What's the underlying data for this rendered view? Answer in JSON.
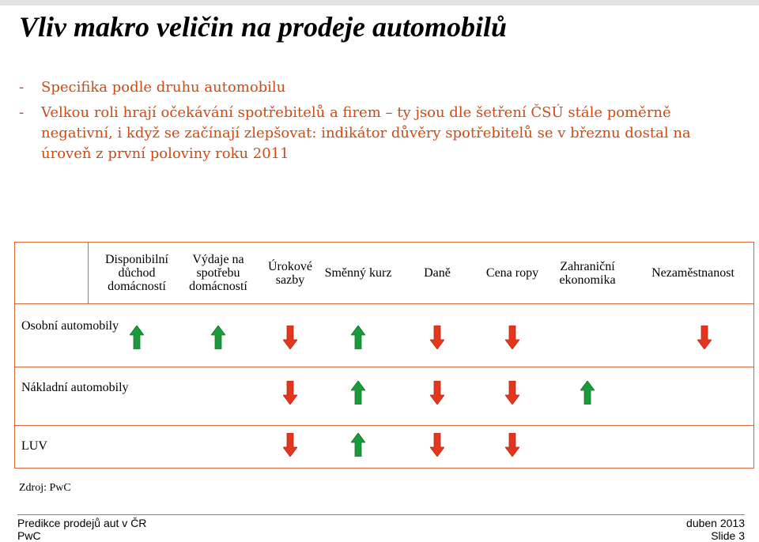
{
  "title": "Vliv makro veličin na prodeje automobilů",
  "bullets": [
    "Specifika podle druhu automobilu",
    "Velkou roli hrají očekávání spotřebitelů a firem – ty jsou dle šetření ČSÚ stále poměrně negativní, i když se začínají zlepšovat: indikátor důvěry spotřebitelů se v březnu dostal na úroveň z první poloviny roku 2011"
  ],
  "bullet_marker": "-",
  "table": {
    "columns": [
      "Disponibilní důchod domácností",
      "Výdaje na spotřebu domácností",
      "Úrokové sazby",
      "Směnný kurz",
      "Daně",
      "Cena ropy",
      "Zahraniční ekonomika",
      "Nezaměstnanost"
    ],
    "rows": [
      {
        "label": "Osobní automobily",
        "effects": [
          "up",
          "up",
          "down",
          "up",
          "down",
          "down",
          "",
          "down"
        ]
      },
      {
        "label": "Nákladní automobily",
        "effects": [
          "",
          "",
          "down",
          "up",
          "down",
          "down",
          "up",
          ""
        ]
      },
      {
        "label": "LUV",
        "effects": [
          "",
          "",
          "down",
          "up",
          "down",
          "down",
          "",
          ""
        ]
      }
    ],
    "colors": {
      "up": "#1a9a3a",
      "down": "#e2361e",
      "border": "#d2673a"
    }
  },
  "source": "Zdroj: PwC",
  "footer": {
    "left_line1": "Predikce prodejů aut v ČR",
    "left_line2": "PwC",
    "right_line1": "duben 2013",
    "right_line2": "Slide 3"
  },
  "colors": {
    "bullet_text": "#d04a10",
    "title": "#000000"
  }
}
